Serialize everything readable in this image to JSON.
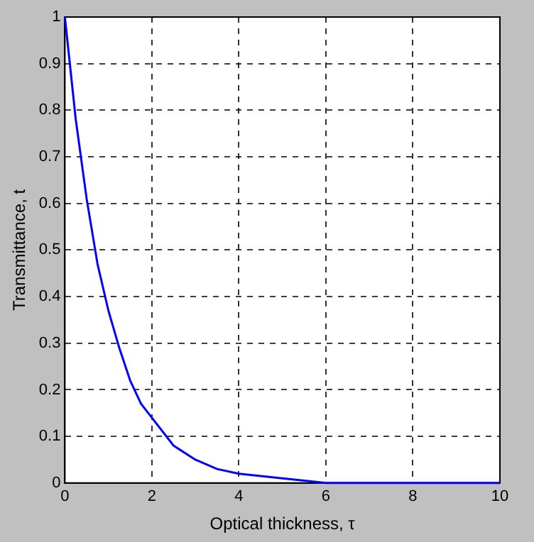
{
  "chart_data": {
    "type": "line",
    "xlabel": "Optical thickness, τ",
    "ylabel": "Transmittance, t",
    "x": [
      0,
      0.25,
      0.5,
      0.75,
      1,
      1.25,
      1.5,
      1.75,
      2,
      2.5,
      3,
      3.5,
      4,
      5,
      6,
      7,
      8,
      10
    ],
    "series": [
      {
        "color": "#0000ff",
        "values": [
          1,
          0.78,
          0.61,
          0.47,
          0.37,
          0.29,
          0.22,
          0.17,
          0.14,
          0.08,
          0.05,
          0.03,
          0.02,
          0.01,
          0,
          0,
          0,
          0
        ]
      }
    ],
    "xlim": [
      0,
      10
    ],
    "xticks": [
      0,
      2,
      4,
      6,
      8,
      10
    ],
    "ylim": [
      0,
      1
    ],
    "yticks": [
      0,
      0.1,
      0.2,
      0.3,
      0.4,
      0.5,
      0.6,
      0.7,
      0.8,
      0.9,
      1
    ],
    "grid": true,
    "legend": false,
    "marker": "none",
    "line_style": "solid"
  }
}
